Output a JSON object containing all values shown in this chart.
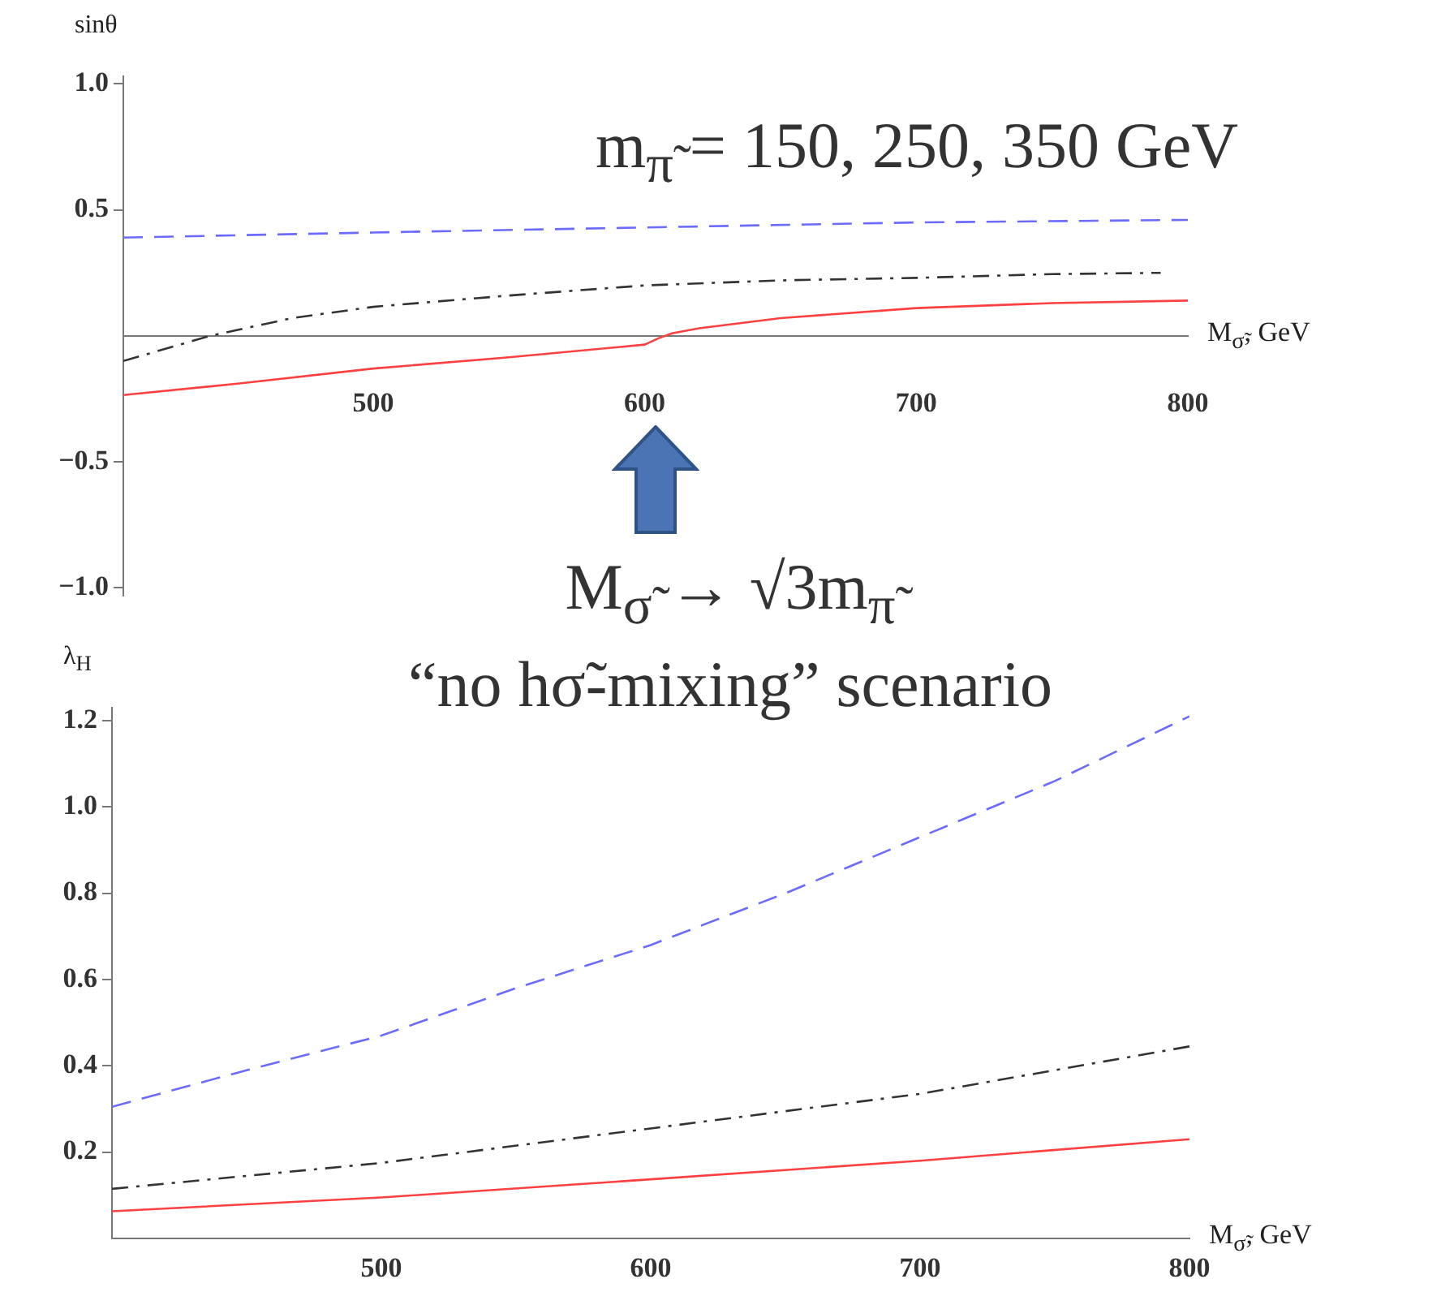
{
  "chart_data": [
    {
      "type": "line",
      "ylabel": "sinθ",
      "xlabel": "M$_{σ̃}$, GeV",
      "annotations": [
        "m$_{π̃}$ = 150, 250, 350 GeV"
      ],
      "xlim": [
        408,
        800
      ],
      "xticks": [
        500,
        600,
        700,
        800
      ],
      "ylim": [
        -1.03,
        1.03
      ],
      "yticks": [
        {
          "value": -1,
          "label": "−1.0"
        },
        {
          "value": -0.5,
          "label": "−0.5"
        },
        {
          "value": 0.5,
          "label": "0.5"
        },
        {
          "value": 1,
          "label": "1.0"
        }
      ],
      "grid": false,
      "legend": false,
      "marker": "none",
      "series": [
        {
          "color": "#6b6bff",
          "line_style": "dashed",
          "x": [
            408,
            500,
            600,
            700,
            800
          ],
          "values": [
            0.39,
            0.41,
            0.43,
            0.45,
            0.46
          ]
        },
        {
          "color": "#333333",
          "line_style": "dashdot",
          "x": [
            408,
            440,
            470,
            500,
            550,
            600,
            650,
            700,
            750,
            790
          ],
          "values": [
            -0.1,
            0,
            0.07,
            0.115,
            0.16,
            0.2,
            0.22,
            0.23,
            0.245,
            0.25
          ]
        },
        {
          "color": "#ff4040",
          "line_style": "solid",
          "x": [
            408,
            450,
            500,
            550,
            600,
            605,
            610,
            620,
            650,
            700,
            750,
            800
          ],
          "values": [
            -0.235,
            -0.19,
            -0.13,
            -0.085,
            -0.035,
            -0.01,
            0.01,
            0.03,
            0.07,
            0.11,
            0.13,
            0.14
          ]
        }
      ]
    },
    {
      "type": "line",
      "ylabel": "λ$_{H}$",
      "xlabel": "M$_{σ̃}$, GeV",
      "annotations": [
        "M$_{σ̃}$ → √3m$_{π̃}$",
        "“no hσ̃-mixing” scenario"
      ],
      "xlim": [
        400,
        800
      ],
      "xticks": [
        500,
        600,
        700,
        800
      ],
      "ylim": [
        0,
        1.23
      ],
      "yticks": [
        0.2,
        0.4,
        0.6,
        0.8,
        {
          "value": 1,
          "label": "1.0"
        },
        1.2
      ],
      "grid": false,
      "legend": false,
      "marker": "none",
      "series": [
        {
          "color": "#6b6bff",
          "line_style": "dashed",
          "x": [
            400,
            450,
            500,
            550,
            600,
            650,
            700,
            750,
            800
          ],
          "values": [
            0.305,
            0.39,
            0.47,
            0.58,
            0.68,
            0.8,
            0.93,
            1.06,
            1.21
          ]
        },
        {
          "color": "#333333",
          "line_style": "dashdot",
          "x": [
            400,
            500,
            600,
            700,
            800
          ],
          "values": [
            0.115,
            0.175,
            0.255,
            0.335,
            0.445
          ]
        },
        {
          "color": "#ff4040",
          "line_style": "solid",
          "x": [
            400,
            500,
            600,
            700,
            800
          ],
          "values": [
            0.063,
            0.095,
            0.137,
            0.18,
            0.23
          ]
        }
      ]
    }
  ]
}
